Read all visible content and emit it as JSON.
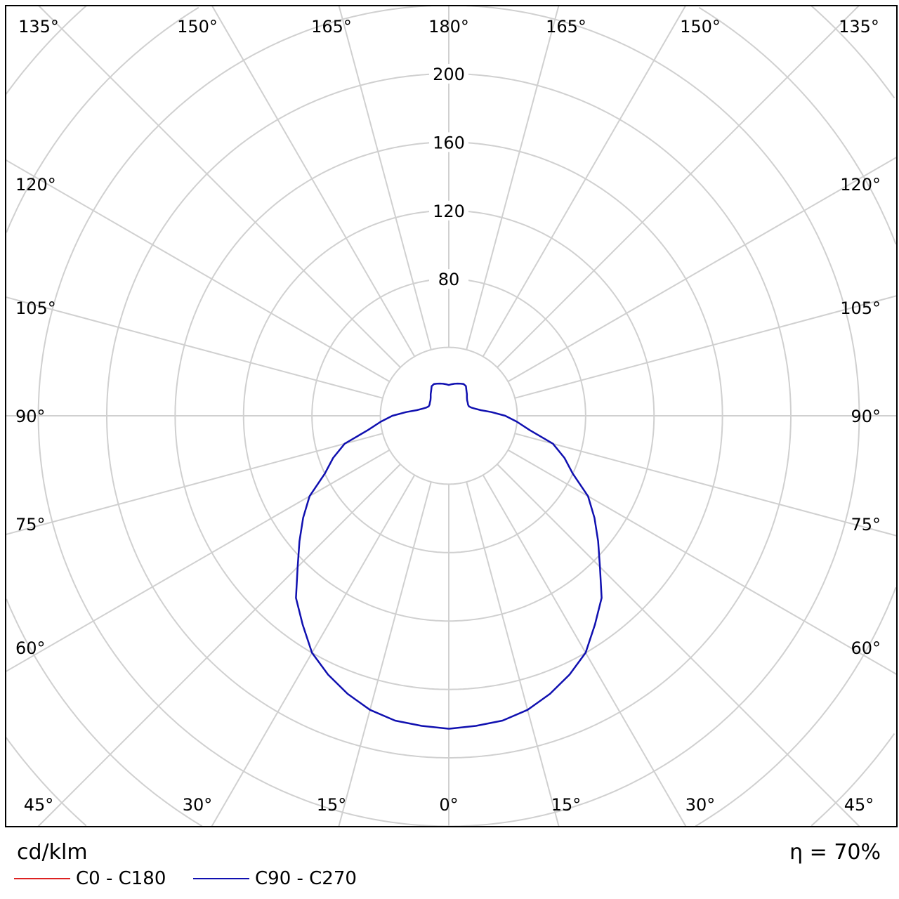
{
  "chart_data": {
    "type": "polar",
    "unit_label": "cd/klm",
    "efficiency_label": "η = 70%",
    "radial_axis": {
      "min": 0,
      "max": 320,
      "ring_step": 40,
      "tick_labels": [
        "80",
        "120",
        "160",
        "200"
      ]
    },
    "angle_step_deg": 15,
    "angle_labels": {
      "top": [
        "135°",
        "150°",
        "165°",
        "180°",
        "165°",
        "150°",
        "135°"
      ],
      "left": [
        "120°",
        "105°",
        "90°",
        "75°",
        "60°"
      ],
      "right": [
        "120°",
        "105°",
        "90°",
        "75°",
        "60°"
      ],
      "bottom": [
        "45°",
        "30°",
        "15°",
        "0°",
        "15°",
        "30°",
        "45°"
      ]
    },
    "grid": true,
    "legend_position": "bottom-left",
    "series": [
      {
        "name": "C0 - C180",
        "color": "#dd2222",
        "gamma": [],
        "values": []
      },
      {
        "name": "C90 - C270",
        "color": "#1010b0",
        "gamma": [
          0,
          5,
          10,
          15,
          20,
          25,
          30,
          35,
          40,
          45,
          50,
          55,
          60,
          65,
          70,
          75,
          80,
          85,
          90,
          95,
          100,
          105,
          110,
          115,
          120,
          125,
          130,
          135,
          140,
          145,
          150,
          155,
          160,
          165,
          170,
          175,
          180
        ],
        "values": [
          183,
          182,
          181,
          178,
          173,
          167,
          160,
          149,
          139,
          125,
          114,
          104,
          94,
          80,
          72,
          63,
          48,
          40,
          33,
          25,
          19,
          16,
          14,
          13,
          13,
          13.5,
          14,
          15,
          16.5,
          18,
          20,
          20.5,
          20,
          19.5,
          19,
          18.5,
          18
        ]
      }
    ]
  }
}
